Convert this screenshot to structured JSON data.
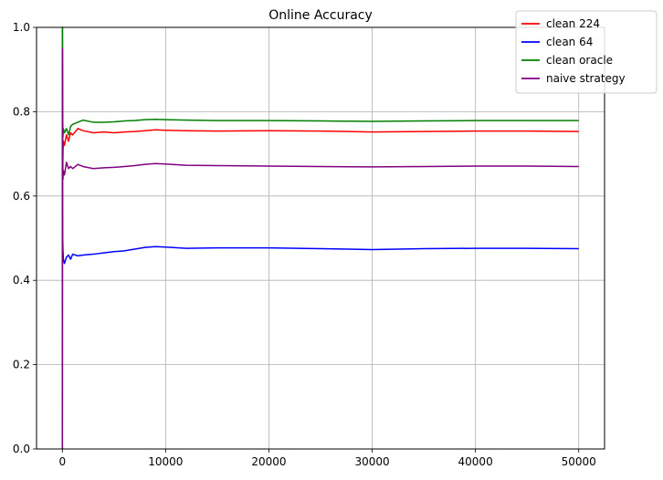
{
  "chart_data": {
    "type": "line",
    "title": "Online Accuracy",
    "xlabel": "",
    "ylabel": "",
    "xlim": [
      -2500,
      52500
    ],
    "ylim": [
      0.0,
      1.0
    ],
    "xticks": [
      0,
      10000,
      20000,
      30000,
      40000,
      50000
    ],
    "yticks": [
      0.0,
      0.2,
      0.4,
      0.6,
      0.8,
      1.0
    ],
    "xtick_labels": [
      "0",
      "10000",
      "20000",
      "30000",
      "40000",
      "50000"
    ],
    "ytick_labels": [
      "0.0",
      "0.2",
      "0.4",
      "0.6",
      "0.8",
      "1.0"
    ],
    "grid": true,
    "legend_position": "top-right",
    "series": [
      {
        "name": "clean 224",
        "color": "#ff0000",
        "points": [
          [
            0,
            0.0
          ],
          [
            10,
            1.0
          ],
          [
            30,
            0.65
          ],
          [
            60,
            0.7
          ],
          [
            100,
            0.73
          ],
          [
            200,
            0.72
          ],
          [
            400,
            0.745
          ],
          [
            600,
            0.73
          ],
          [
            800,
            0.75
          ],
          [
            1000,
            0.745
          ],
          [
            1500,
            0.76
          ],
          [
            2000,
            0.755
          ],
          [
            3000,
            0.75
          ],
          [
            4000,
            0.752
          ],
          [
            5000,
            0.75
          ],
          [
            6000,
            0.752
          ],
          [
            7000,
            0.753
          ],
          [
            8000,
            0.755
          ],
          [
            9000,
            0.757
          ],
          [
            10000,
            0.756
          ],
          [
            12000,
            0.755
          ],
          [
            15000,
            0.754
          ],
          [
            20000,
            0.755
          ],
          [
            25000,
            0.754
          ],
          [
            30000,
            0.752
          ],
          [
            35000,
            0.753
          ],
          [
            40000,
            0.754
          ],
          [
            45000,
            0.754
          ],
          [
            50000,
            0.753
          ]
        ]
      },
      {
        "name": "clean 64",
        "color": "#0000ff",
        "points": [
          [
            0,
            0.0
          ],
          [
            10,
            0.8
          ],
          [
            30,
            0.5
          ],
          [
            60,
            0.47
          ],
          [
            100,
            0.45
          ],
          [
            200,
            0.44
          ],
          [
            400,
            0.455
          ],
          [
            600,
            0.46
          ],
          [
            800,
            0.45
          ],
          [
            1000,
            0.462
          ],
          [
            1500,
            0.458
          ],
          [
            2000,
            0.46
          ],
          [
            3000,
            0.462
          ],
          [
            4000,
            0.465
          ],
          [
            5000,
            0.468
          ],
          [
            6000,
            0.47
          ],
          [
            7000,
            0.474
          ],
          [
            8000,
            0.478
          ],
          [
            9000,
            0.48
          ],
          [
            10000,
            0.479
          ],
          [
            12000,
            0.476
          ],
          [
            15000,
            0.477
          ],
          [
            20000,
            0.477
          ],
          [
            25000,
            0.475
          ],
          [
            30000,
            0.473
          ],
          [
            35000,
            0.475
          ],
          [
            40000,
            0.476
          ],
          [
            45000,
            0.476
          ],
          [
            50000,
            0.475
          ]
        ]
      },
      {
        "name": "clean oracle",
        "color": "#008000",
        "points": [
          [
            0,
            0.0
          ],
          [
            10,
            1.0
          ],
          [
            30,
            0.8
          ],
          [
            60,
            0.74
          ],
          [
            100,
            0.76
          ],
          [
            200,
            0.75
          ],
          [
            400,
            0.76
          ],
          [
            600,
            0.745
          ],
          [
            800,
            0.765
          ],
          [
            1000,
            0.77
          ],
          [
            1500,
            0.775
          ],
          [
            2000,
            0.78
          ],
          [
            3000,
            0.775
          ],
          [
            4000,
            0.775
          ],
          [
            5000,
            0.776
          ],
          [
            6000,
            0.778
          ],
          [
            7000,
            0.779
          ],
          [
            8000,
            0.781
          ],
          [
            9000,
            0.782
          ],
          [
            10000,
            0.781
          ],
          [
            12000,
            0.78
          ],
          [
            15000,
            0.779
          ],
          [
            20000,
            0.779
          ],
          [
            25000,
            0.778
          ],
          [
            30000,
            0.777
          ],
          [
            35000,
            0.778
          ],
          [
            40000,
            0.779
          ],
          [
            45000,
            0.779
          ],
          [
            50000,
            0.779
          ]
        ]
      },
      {
        "name": "naive strategy",
        "color": "#800080",
        "points": [
          [
            0,
            0.0
          ],
          [
            10,
            0.95
          ],
          [
            30,
            0.72
          ],
          [
            60,
            0.64
          ],
          [
            100,
            0.66
          ],
          [
            200,
            0.65
          ],
          [
            400,
            0.68
          ],
          [
            600,
            0.665
          ],
          [
            800,
            0.67
          ],
          [
            1000,
            0.665
          ],
          [
            1500,
            0.675
          ],
          [
            2000,
            0.67
          ],
          [
            3000,
            0.665
          ],
          [
            4000,
            0.667
          ],
          [
            5000,
            0.668
          ],
          [
            6000,
            0.67
          ],
          [
            7000,
            0.672
          ],
          [
            8000,
            0.675
          ],
          [
            9000,
            0.677
          ],
          [
            10000,
            0.676
          ],
          [
            12000,
            0.673
          ],
          [
            15000,
            0.672
          ],
          [
            20000,
            0.671
          ],
          [
            25000,
            0.67
          ],
          [
            30000,
            0.669
          ],
          [
            35000,
            0.67
          ],
          [
            40000,
            0.671
          ],
          [
            45000,
            0.671
          ],
          [
            50000,
            0.67
          ]
        ]
      }
    ]
  }
}
